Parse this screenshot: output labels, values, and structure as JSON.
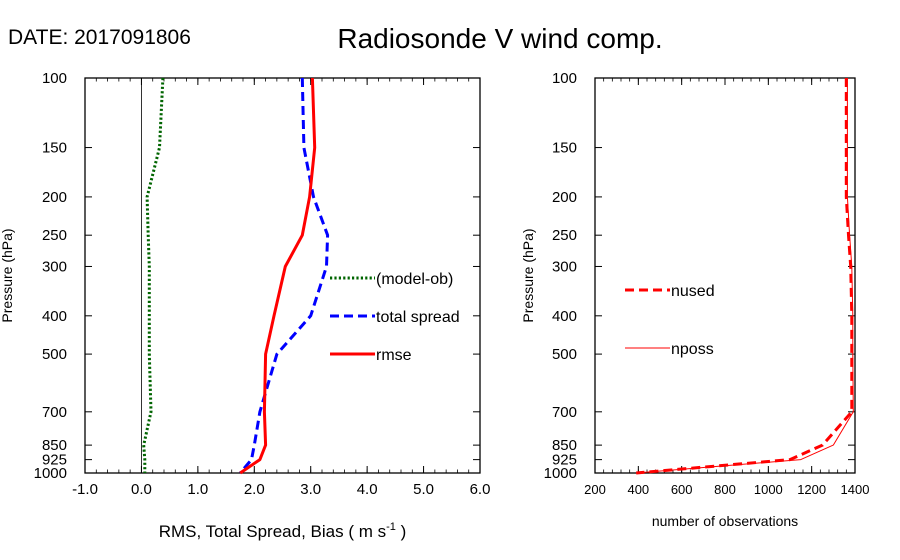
{
  "header": {
    "date_label": "DATE: 2017091806",
    "title": "Radiosonde V wind comp."
  },
  "chart_data": [
    {
      "type": "line",
      "xlabel_main": "RMS, Total Spread, Bias ( m s",
      "xlabel_sup": "-1",
      "xlabel_end": " )",
      "ylabel": "Pressure (hPa)",
      "xlim": [
        -1.0,
        6.0
      ],
      "ylim": [
        1000,
        100
      ],
      "y_scale": "log",
      "xticks": [
        -1.0,
        0.0,
        1.0,
        2.0,
        3.0,
        4.0,
        5.0,
        6.0
      ],
      "xtick_labels": [
        "-1.0",
        "0.0",
        "1.0",
        "2.0",
        "3.0",
        "4.0",
        "5.0",
        "6.0"
      ],
      "yticks": [
        100,
        150,
        200,
        250,
        300,
        400,
        500,
        700,
        850,
        925,
        1000
      ],
      "ytick_labels": [
        "100",
        "150",
        "200",
        "250",
        "300",
        "400",
        "500",
        "700",
        "850",
        "925",
        "1000"
      ],
      "zero_line": 0.0,
      "legend_position": "right",
      "pressure": [
        100,
        150,
        200,
        250,
        300,
        400,
        500,
        700,
        850,
        925,
        1000
      ],
      "series": [
        {
          "name": "(model-ob)",
          "style": "dotted",
          "color": "#006400",
          "width": 3,
          "values": [
            0.38,
            0.32,
            0.1,
            0.12,
            0.14,
            0.14,
            0.14,
            0.17,
            0.04,
            0.06,
            0.06
          ]
        },
        {
          "name": "total spread",
          "style": "dashed",
          "color": "#0000ff",
          "width": 3,
          "values": [
            2.85,
            2.88,
            3.05,
            3.3,
            3.28,
            3.0,
            2.4,
            2.1,
            2.0,
            1.95,
            1.75
          ]
        },
        {
          "name": "rmse",
          "style": "solid",
          "color": "#ff0000",
          "width": 3,
          "values": [
            3.03,
            3.07,
            2.98,
            2.85,
            2.55,
            2.35,
            2.2,
            2.18,
            2.2,
            2.1,
            1.75
          ]
        }
      ]
    },
    {
      "type": "line",
      "xlabel": "number of observations",
      "ylabel": "Pressure (hPa)",
      "xlim": [
        200,
        1400
      ],
      "ylim": [
        1000,
        100
      ],
      "y_scale": "log",
      "xticks": [
        200,
        400,
        600,
        800,
        1000,
        1200,
        1400
      ],
      "xtick_labels": [
        "200",
        "400",
        "600",
        "800",
        "1000",
        "1200",
        "1400"
      ],
      "yticks": [
        100,
        150,
        200,
        250,
        300,
        400,
        500,
        700,
        850,
        925,
        1000
      ],
      "ytick_labels": [
        "100",
        "150",
        "200",
        "250",
        "300",
        "400",
        "500",
        "700",
        "850",
        "925",
        "1000"
      ],
      "legend_position": "left",
      "pressure": [
        100,
        150,
        200,
        250,
        300,
        400,
        500,
        700,
        850,
        925,
        1000
      ],
      "series": [
        {
          "name": "nused",
          "style": "dashed",
          "color": "#ff0000",
          "width": 3,
          "values": [
            1360,
            1360,
            1360,
            1370,
            1380,
            1385,
            1385,
            1385,
            1250,
            1100,
            390
          ]
        },
        {
          "name": "nposs",
          "style": "solid",
          "color": "#ff0000",
          "width": 1,
          "values": [
            1365,
            1365,
            1365,
            1375,
            1385,
            1390,
            1390,
            1392,
            1300,
            1150,
            390
          ]
        }
      ]
    }
  ]
}
